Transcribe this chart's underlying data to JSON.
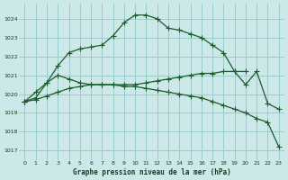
{
  "title": "Graphe pression niveau de la mer (hPa)",
  "bg_color": "#cce8e8",
  "grid_color": "#99cccc",
  "line_color": "#1a5c2a",
  "xlim": [
    -0.5,
    23.5
  ],
  "ylim": [
    1016.5,
    1024.8
  ],
  "yticks": [
    1017,
    1018,
    1019,
    1020,
    1021,
    1022,
    1023,
    1024
  ],
  "xticks": [
    0,
    1,
    2,
    3,
    4,
    5,
    6,
    7,
    8,
    9,
    10,
    11,
    12,
    13,
    14,
    15,
    16,
    17,
    18,
    19,
    20,
    21,
    22,
    23
  ],
  "line1_x": [
    0,
    1,
    2,
    3,
    4,
    5,
    6,
    7,
    8,
    9,
    10,
    11,
    12,
    13,
    14,
    15,
    16,
    17,
    18,
    19,
    20,
    21,
    22,
    23
  ],
  "line1_y": [
    1019.6,
    1020.1,
    1020.6,
    1021.5,
    1022.2,
    1022.4,
    1022.5,
    1022.6,
    1023.1,
    1023.8,
    1024.2,
    1024.2,
    1024.0,
    1023.5,
    1023.4,
    1023.2,
    1023.0,
    1022.6,
    1022.2,
    1021.2,
    1020.5,
    1021.2,
    1019.5,
    1019.2
  ],
  "line2_x": [
    0,
    1,
    2,
    3,
    4,
    5,
    6,
    7,
    8,
    9,
    10,
    11,
    12,
    13,
    14,
    15,
    16,
    17,
    18,
    19,
    20
  ],
  "line2_y": [
    1019.6,
    1019.8,
    1020.6,
    1021.0,
    1020.8,
    1020.6,
    1020.5,
    1020.5,
    1020.5,
    1020.5,
    1020.5,
    1020.6,
    1020.7,
    1020.8,
    1020.9,
    1021.0,
    1021.1,
    1021.1,
    1021.2,
    1021.2,
    1021.2
  ],
  "line3_x": [
    0,
    1,
    2,
    3,
    4,
    5,
    6,
    7,
    8,
    9,
    10,
    11,
    12,
    13,
    14,
    15,
    16,
    17,
    18,
    19,
    20,
    21,
    22,
    23
  ],
  "line3_y": [
    1019.6,
    1019.7,
    1019.9,
    1020.1,
    1020.3,
    1020.4,
    1020.5,
    1020.5,
    1020.5,
    1020.4,
    1020.4,
    1020.3,
    1020.2,
    1020.1,
    1020.0,
    1019.9,
    1019.8,
    1019.6,
    1019.4,
    1019.2,
    1019.0,
    1018.7,
    1018.5,
    1017.2
  ]
}
